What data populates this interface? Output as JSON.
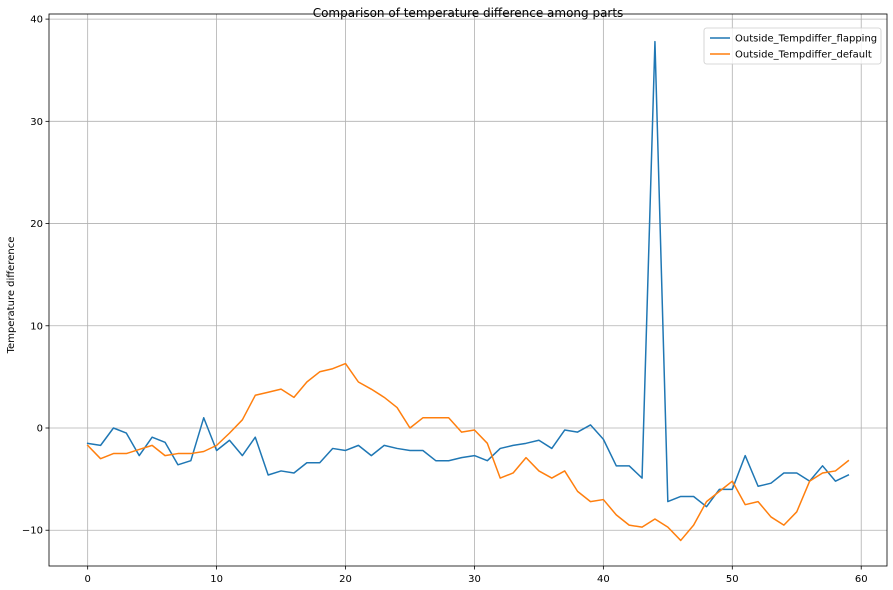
{
  "chart_data": {
    "type": "line",
    "title": "Comparison of temperature difference among parts",
    "xlabel": "",
    "ylabel": "Temperature difference",
    "xlim": [
      -3,
      62
    ],
    "ylim": [
      -13.5,
      40.5
    ],
    "xticks": [
      0,
      10,
      20,
      30,
      40,
      50,
      60
    ],
    "yticks": [
      -10,
      0,
      10,
      20,
      30,
      40
    ],
    "ytick_labels": [
      "−10",
      "0",
      "10",
      "20",
      "30",
      "40"
    ],
    "grid": true,
    "legend_position": "top-right",
    "x": [
      0,
      1,
      2,
      3,
      4,
      5,
      6,
      7,
      8,
      9,
      10,
      11,
      12,
      13,
      14,
      15,
      16,
      17,
      18,
      19,
      20,
      21,
      22,
      23,
      24,
      25,
      26,
      27,
      28,
      29,
      30,
      31,
      32,
      33,
      34,
      35,
      36,
      37,
      38,
      39,
      40,
      41,
      42,
      43,
      44,
      45,
      46,
      47,
      48,
      49,
      50,
      51,
      52,
      53,
      54,
      55,
      56,
      57,
      58,
      59
    ],
    "series": [
      {
        "name": "Outside_Tempdiffer_flapping",
        "color": "#1f77b4",
        "values": [
          -1.5,
          -1.7,
          0.0,
          -0.5,
          -2.7,
          -0.9,
          -1.4,
          -3.6,
          -3.2,
          1.0,
          -2.2,
          -1.2,
          -2.7,
          -0.9,
          -4.6,
          -4.2,
          -4.4,
          -3.4,
          -3.4,
          -2.0,
          -2.2,
          -1.7,
          -2.7,
          -1.7,
          -2.0,
          -2.2,
          -2.2,
          -3.2,
          -3.2,
          -2.9,
          -2.7,
          -3.2,
          -2.0,
          -1.7,
          -1.5,
          -1.2,
          -2.0,
          -0.2,
          -0.4,
          0.3,
          -1.1,
          -3.7,
          -3.7,
          -4.9,
          37.8,
          -7.2,
          -6.7,
          -6.7,
          -7.7,
          -6.0,
          -6.0,
          -2.7,
          -5.7,
          -5.4,
          -4.4,
          -4.4,
          -5.2,
          -3.7,
          -5.2,
          -4.6
        ]
      },
      {
        "name": "Outside_Tempdiffer_default",
        "color": "#ff7f0e",
        "values": [
          -1.7,
          -3.0,
          -2.5,
          -2.5,
          -2.1,
          -1.7,
          -2.7,
          -2.5,
          -2.5,
          -2.3,
          -1.7,
          -0.5,
          0.8,
          3.2,
          3.5,
          3.8,
          3.0,
          4.5,
          5.5,
          5.8,
          6.3,
          4.5,
          3.8,
          3.0,
          2.0,
          0.0,
          1.0,
          1.0,
          1.0,
          -0.4,
          -0.2,
          -1.5,
          -4.9,
          -4.4,
          -2.9,
          -4.2,
          -4.9,
          -4.2,
          -6.2,
          -7.2,
          -7.0,
          -8.5,
          -9.5,
          -9.7,
          -8.9,
          -9.7,
          -11.0,
          -9.5,
          -7.2,
          -6.2,
          -5.2,
          -7.5,
          -7.2,
          -8.7,
          -9.5,
          -8.2,
          -5.2,
          -4.4,
          -4.2,
          -3.2
        ]
      }
    ]
  }
}
